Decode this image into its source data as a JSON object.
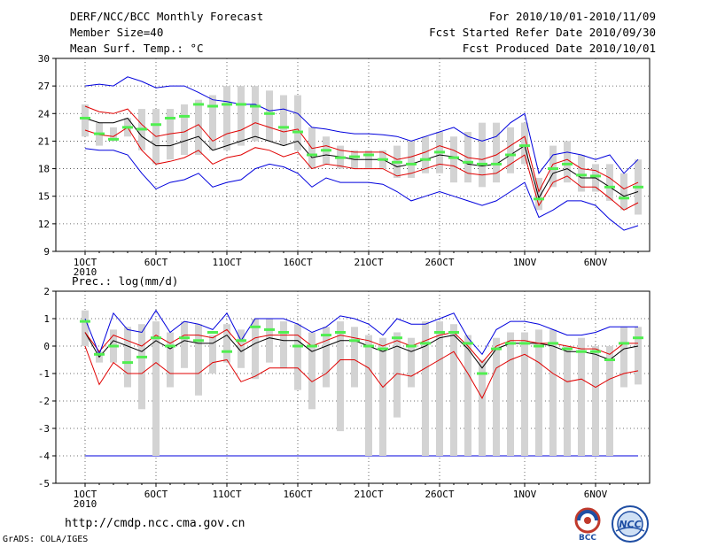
{
  "header": {
    "title": "DERF/NCC/BCC Monthly Forecast",
    "member_size": "Member Size=40",
    "variable": "Mean Surf. Temp.: °C",
    "forecast_period": "For 2010/10/01-2010/11/09",
    "started_refer": "Fcst Started Refer Date 2010/09/30",
    "produced": "Fcst Produced Date 2010/10/01"
  },
  "footer": {
    "url": "http://cmdp.ncc.cma.gov.cn",
    "credit": "GrADS: COLA/IGES",
    "logo_bcc": "BCC",
    "logo_ncc": "NCC"
  },
  "colors": {
    "box": "#d3d3d3",
    "median": "#50ee50",
    "mean": "#000000",
    "std": "#e00000",
    "extreme": "#0000dd",
    "grid": "#444444"
  },
  "chart_data": [
    {
      "type": "box_line",
      "title": "Mean Surf. Temp.: °C",
      "xlabel": "",
      "ylabel": "",
      "xlim": [
        0,
        40
      ],
      "ylim": [
        9,
        30
      ],
      "yticks": [
        9,
        12,
        15,
        18,
        21,
        24,
        27,
        30
      ],
      "xtick_labels": [
        {
          "day": 1,
          "label": "1OCT",
          "sub": "2010"
        },
        {
          "day": 6,
          "label": "6OCT"
        },
        {
          "day": 11,
          "label": "11OCT"
        },
        {
          "day": 16,
          "label": "16OCT"
        },
        {
          "day": 21,
          "label": "21OCT"
        },
        {
          "day": 26,
          "label": "26OCT"
        },
        {
          "day": 32,
          "label": "1NOV"
        },
        {
          "day": 37,
          "label": "6NOV"
        }
      ],
      "grid": true,
      "days": [
        1,
        2,
        3,
        4,
        5,
        6,
        7,
        8,
        9,
        10,
        11,
        12,
        13,
        14,
        15,
        16,
        17,
        18,
        19,
        20,
        21,
        22,
        23,
        24,
        25,
        26,
        27,
        28,
        29,
        30,
        31,
        32,
        33,
        34,
        35,
        36,
        37,
        38,
        39,
        40
      ],
      "box_low": [
        21.5,
        20.5,
        21.0,
        21.5,
        20.0,
        18.5,
        19.0,
        19.5,
        19.5,
        20.0,
        20.0,
        20.5,
        21.0,
        21.0,
        20.5,
        20.0,
        18.0,
        18.5,
        18.0,
        18.0,
        18.0,
        18.0,
        17.0,
        17.0,
        17.5,
        17.5,
        16.5,
        16.5,
        16.0,
        16.5,
        17.5,
        18.5,
        13.5,
        16.0,
        16.5,
        15.5,
        15.5,
        14.5,
        13.5,
        13.0
      ],
      "box_high": [
        25.0,
        23.0,
        22.5,
        23.5,
        24.5,
        24.5,
        24.5,
        25.0,
        25.5,
        26.0,
        27.0,
        27.0,
        27.0,
        26.5,
        26.0,
        26.0,
        22.5,
        21.5,
        20.5,
        20.0,
        20.0,
        20.0,
        20.5,
        21.0,
        21.5,
        22.0,
        21.5,
        22.0,
        23.0,
        23.0,
        22.5,
        23.0,
        17.0,
        20.5,
        21.0,
        19.5,
        18.5,
        18.5,
        17.5,
        19.0
      ],
      "median": [
        23.5,
        21.8,
        21.2,
        22.5,
        22.3,
        22.8,
        23.5,
        23.7,
        25.0,
        24.8,
        25.0,
        25.0,
        24.8,
        24.0,
        22.5,
        22.0,
        19.5,
        20.0,
        19.2,
        19.3,
        19.5,
        19.0,
        18.7,
        18.5,
        19.0,
        19.8,
        19.2,
        18.7,
        18.5,
        18.5,
        19.5,
        20.5,
        14.7,
        18.0,
        18.5,
        17.3,
        17.2,
        16.0,
        14.8,
        16.0
      ],
      "series": [
        {
          "name": "mean",
          "color": "#000000",
          "values": [
            23.5,
            23.0,
            23.0,
            23.5,
            21.5,
            20.5,
            20.5,
            21.0,
            21.5,
            20.0,
            20.5,
            21.0,
            21.5,
            21.0,
            20.5,
            21.0,
            19.2,
            19.5,
            19.3,
            19.0,
            19.0,
            19.0,
            18.2,
            18.5,
            19.0,
            19.5,
            19.3,
            18.5,
            18.3,
            18.5,
            19.5,
            20.5,
            14.8,
            17.5,
            18.0,
            17.0,
            17.0,
            16.0,
            15.0,
            15.5
          ]
        },
        {
          "name": "mean+std",
          "color": "#e00000",
          "values": [
            24.8,
            24.2,
            24.0,
            24.5,
            22.8,
            21.5,
            21.8,
            22.0,
            22.8,
            21.0,
            21.8,
            22.2,
            23.0,
            22.5,
            22.0,
            22.3,
            20.2,
            20.5,
            20.0,
            19.8,
            19.8,
            19.8,
            19.0,
            19.3,
            19.8,
            20.5,
            20.0,
            19.2,
            19.0,
            19.5,
            20.5,
            21.5,
            15.5,
            18.5,
            19.0,
            18.0,
            17.8,
            17.0,
            15.8,
            16.5
          ]
        },
        {
          "name": "mean-std",
          "color": "#e00000",
          "values": [
            22.2,
            21.7,
            21.5,
            22.5,
            20.0,
            18.5,
            18.8,
            19.2,
            20.0,
            18.5,
            19.2,
            19.5,
            20.3,
            20.0,
            19.3,
            19.8,
            18.0,
            18.5,
            18.3,
            18.0,
            18.0,
            18.0,
            17.2,
            17.5,
            18.0,
            18.5,
            18.3,
            17.5,
            17.3,
            17.5,
            18.5,
            19.5,
            14.0,
            16.5,
            17.2,
            16.0,
            16.0,
            14.8,
            13.5,
            14.3
          ]
        },
        {
          "name": "max",
          "color": "#0000dd",
          "values": [
            27.0,
            27.2,
            27.0,
            28.0,
            27.5,
            26.8,
            27.0,
            27.0,
            26.3,
            25.5,
            25.3,
            25.0,
            25.0,
            24.3,
            24.5,
            24.0,
            22.5,
            22.3,
            22.0,
            21.8,
            21.8,
            21.7,
            21.5,
            21.0,
            21.5,
            22.0,
            22.5,
            21.5,
            21.0,
            21.5,
            23.0,
            24.0,
            17.5,
            19.5,
            19.8,
            19.5,
            19.0,
            19.5,
            17.5,
            19.0
          ]
        },
        {
          "name": "min",
          "color": "#0000dd",
          "values": [
            20.2,
            20.0,
            20.0,
            19.5,
            17.5,
            15.8,
            16.5,
            16.8,
            17.5,
            16.0,
            16.5,
            16.8,
            18.0,
            18.5,
            18.2,
            17.5,
            16.0,
            17.0,
            16.5,
            16.5,
            16.5,
            16.3,
            15.5,
            14.5,
            15.0,
            15.5,
            15.0,
            14.5,
            14.0,
            14.5,
            15.5,
            16.5,
            12.7,
            13.5,
            14.5,
            14.5,
            14.0,
            12.5,
            11.3,
            11.8
          ]
        }
      ]
    },
    {
      "type": "box_line",
      "title": "Prec.: log(mm/d)",
      "xlabel": "",
      "ylabel": "",
      "xlim": [
        0,
        40
      ],
      "ylim": [
        -5,
        2
      ],
      "yticks": [
        -5,
        -4,
        -3,
        -2,
        -1,
        0,
        1,
        2
      ],
      "xtick_labels": [
        {
          "day": 1,
          "label": "1OCT",
          "sub": "2010"
        },
        {
          "day": 6,
          "label": "6OCT"
        },
        {
          "day": 11,
          "label": "11OCT"
        },
        {
          "day": 16,
          "label": "16OCT"
        },
        {
          "day": 21,
          "label": "21OCT"
        },
        {
          "day": 26,
          "label": "26OCT"
        },
        {
          "day": 32,
          "label": "1NOV"
        },
        {
          "day": 37,
          "label": "6NOV"
        }
      ],
      "grid": true,
      "floor_line": -4,
      "days": [
        1,
        2,
        3,
        4,
        5,
        6,
        7,
        8,
        9,
        10,
        11,
        12,
        13,
        14,
        15,
        16,
        17,
        18,
        19,
        20,
        21,
        22,
        23,
        24,
        25,
        26,
        27,
        28,
        29,
        30,
        31,
        32,
        33,
        34,
        35,
        36,
        37,
        38,
        39,
        40
      ],
      "box_low": [
        0.0,
        -0.6,
        -0.6,
        -1.5,
        -2.3,
        -4.0,
        -1.5,
        -0.8,
        -1.8,
        -1.0,
        -0.6,
        -0.8,
        -1.2,
        -0.6,
        -0.8,
        -1.6,
        -2.3,
        -1.5,
        -3.1,
        -1.5,
        -4.0,
        -4.0,
        -2.6,
        -1.5,
        -4.0,
        -4.0,
        -4.0,
        -4.0,
        -4.0,
        -4.0,
        -4.0,
        -4.0,
        -4.0,
        -4.0,
        -4.0,
        -4.0,
        -4.0,
        -4.0,
        -1.5,
        -1.4
      ],
      "box_high": [
        1.3,
        -0.2,
        0.6,
        0.7,
        0.8,
        0.9,
        0.5,
        0.9,
        0.8,
        0.4,
        0.8,
        0.6,
        1.0,
        1.0,
        0.9,
        0.8,
        0.5,
        0.7,
        0.9,
        0.7,
        0.4,
        0.3,
        0.5,
        0.3,
        0.9,
        0.9,
        0.8,
        0.4,
        -0.5,
        0.3,
        0.5,
        0.5,
        0.6,
        0.6,
        0.0,
        0.3,
        0.0,
        0.0,
        0.7,
        0.7
      ],
      "median": [
        0.9,
        -0.3,
        0.0,
        -0.6,
        -0.4,
        0.3,
        0.0,
        0.3,
        0.2,
        0.5,
        -0.2,
        0.2,
        0.7,
        0.6,
        0.5,
        0.0,
        0.0,
        0.4,
        0.5,
        0.2,
        0.0,
        -0.1,
        0.3,
        0.0,
        0.1,
        0.5,
        0.5,
        0.1,
        -1.0,
        -0.1,
        0.1,
        0.1,
        0.0,
        0.1,
        -0.1,
        -0.2,
        -0.2,
        -0.5,
        0.1,
        0.3
      ],
      "series": [
        {
          "name": "mean",
          "color": "#000000",
          "values": [
            0.5,
            -0.4,
            0.2,
            0.0,
            -0.2,
            0.2,
            -0.1,
            0.2,
            0.1,
            0.1,
            0.4,
            -0.2,
            0.1,
            0.3,
            0.2,
            0.2,
            -0.2,
            0.0,
            0.2,
            0.2,
            0.0,
            -0.2,
            0.0,
            -0.2,
            0.0,
            0.3,
            0.4,
            -0.1,
            -0.8,
            -0.1,
            0.1,
            0.1,
            0.1,
            0.0,
            -0.2,
            -0.2,
            -0.3,
            -0.5,
            -0.1,
            0.0
          ]
        },
        {
          "name": "mean+std",
          "color": "#e00000",
          "values": [
            0.5,
            -0.2,
            0.4,
            0.2,
            0.0,
            0.4,
            0.1,
            0.4,
            0.4,
            0.3,
            0.6,
            0.0,
            0.3,
            0.4,
            0.4,
            0.4,
            0.0,
            0.2,
            0.4,
            0.3,
            0.2,
            0.0,
            0.2,
            0.0,
            0.2,
            0.4,
            0.5,
            0.0,
            -0.6,
            0.0,
            0.2,
            0.2,
            0.1,
            0.1,
            0.0,
            -0.1,
            -0.1,
            -0.3,
            0.1,
            0.1
          ]
        },
        {
          "name": "mean-std",
          "color": "#e00000",
          "values": [
            0.0,
            -1.4,
            -0.6,
            -1.0,
            -1.0,
            -0.6,
            -1.0,
            -1.0,
            -1.0,
            -0.6,
            -0.5,
            -1.3,
            -1.1,
            -0.8,
            -0.8,
            -0.8,
            -1.3,
            -1.0,
            -0.5,
            -0.5,
            -0.8,
            -1.5,
            -1.0,
            -1.1,
            -0.8,
            -0.5,
            -0.2,
            -1.0,
            -1.9,
            -0.8,
            -0.5,
            -0.3,
            -0.6,
            -1.0,
            -1.3,
            -1.2,
            -1.5,
            -1.2,
            -1.0,
            -0.9
          ]
        },
        {
          "name": "max",
          "color": "#0000dd",
          "values": [
            1.0,
            -0.3,
            1.2,
            0.6,
            0.5,
            1.3,
            0.5,
            0.9,
            0.8,
            0.6,
            1.2,
            0.2,
            1.0,
            1.0,
            1.0,
            0.8,
            0.5,
            0.7,
            1.1,
            1.0,
            0.8,
            0.4,
            1.0,
            0.8,
            0.8,
            1.0,
            1.2,
            0.3,
            -0.3,
            0.6,
            0.9,
            0.9,
            0.8,
            0.6,
            0.4,
            0.4,
            0.5,
            0.7,
            0.7,
            0.7
          ]
        }
      ]
    }
  ]
}
